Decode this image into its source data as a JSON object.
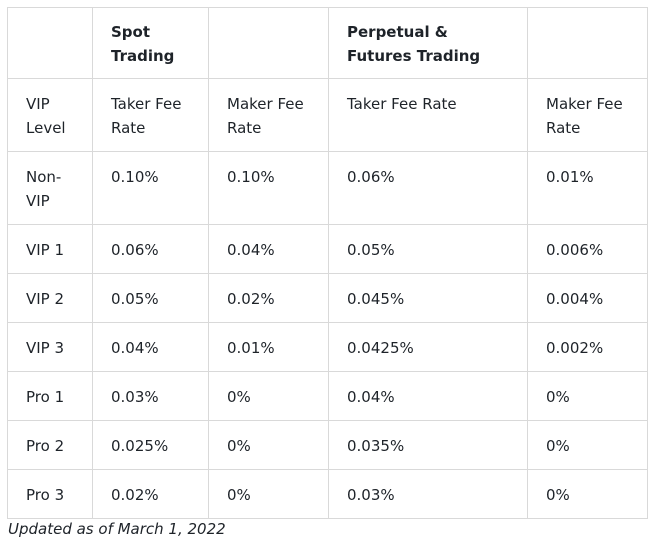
{
  "headers": {
    "group_row": [
      "",
      "Spot Trading",
      "",
      "Perpetual & Futures Trading",
      ""
    ],
    "sub_row": [
      "VIP Level",
      "Taker Fee Rate",
      "Maker Fee Rate",
      "Taker Fee Rate",
      "Maker Fee Rate"
    ]
  },
  "rows": [
    [
      "Non-VIP",
      "0.10%",
      "0.10%",
      "0.06%",
      "0.01%"
    ],
    [
      "VIP 1",
      "0.06%",
      "0.04%",
      "0.05%",
      "0.006%"
    ],
    [
      "VIP 2",
      "0.05%",
      "0.02%",
      "0.045%",
      "0.004%"
    ],
    [
      "VIP 3",
      "0.04%",
      "0.01%",
      "0.0425%",
      "0.002%"
    ],
    [
      "Pro 1",
      "0.03%",
      "0%",
      "0.04%",
      "0%"
    ],
    [
      "Pro 2",
      "0.025%",
      "0%",
      "0.035%",
      "0%"
    ],
    [
      "Pro 3",
      "0.02%",
      "0%",
      "0.03%",
      "0%"
    ]
  ],
  "footnote": "Updated as of March 1, 2022"
}
